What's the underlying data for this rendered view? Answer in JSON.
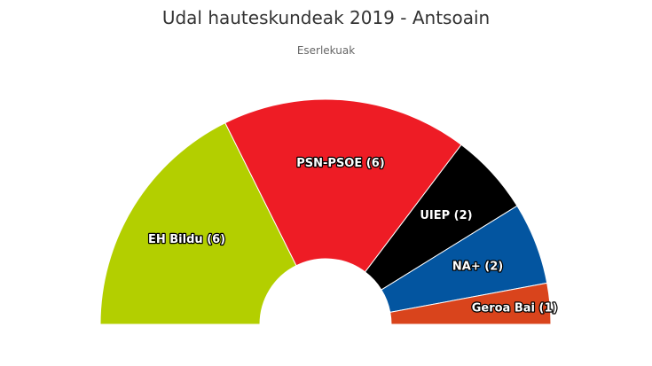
{
  "chart_data": {
    "type": "pie",
    "title": "Udal hauteskundeak 2019 - Antsoain",
    "subtitle": "Eserlekuak",
    "slices": [
      {
        "party": "EH Bildu",
        "seats": 6,
        "label": "EH Bildu (6)",
        "color": "#b3cf00"
      },
      {
        "party": "PSN-PSOE",
        "seats": 6,
        "label": "PSN-PSOE (6)",
        "color": "#ee1c25"
      },
      {
        "party": "UIEP",
        "seats": 2,
        "label": "UIEP (2)",
        "color": "#000000"
      },
      {
        "party": "NA+",
        "seats": 2,
        "label": "NA+ (2)",
        "color": "#0355a0"
      },
      {
        "party": "Geroa Bai",
        "seats": 1,
        "label": "Geroa Bai (1)",
        "color": "#d9441c"
      }
    ]
  }
}
